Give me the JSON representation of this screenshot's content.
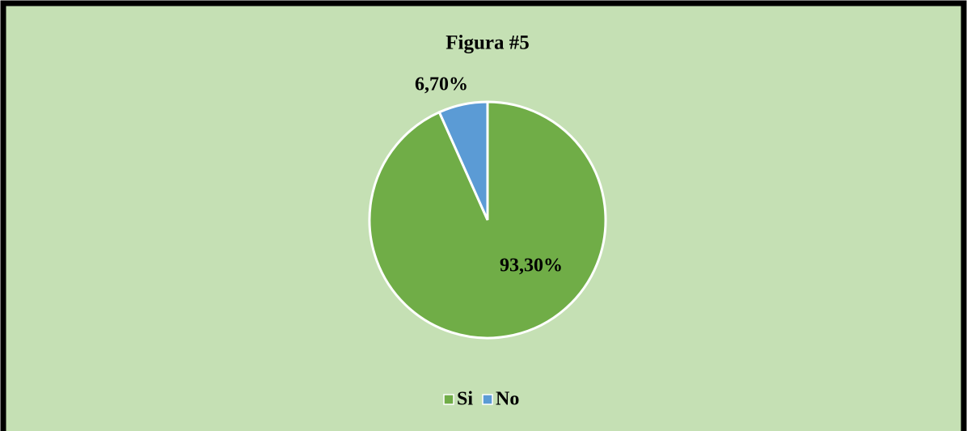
{
  "chart_data": {
    "type": "pie",
    "title": "Figura #5",
    "categories": [
      "Si",
      "No"
    ],
    "values": [
      93.3,
      6.7
    ],
    "value_labels": [
      "93,30%",
      "6,70%"
    ],
    "colors": [
      "#70ad47",
      "#5b9bd5"
    ],
    "legend": "bottom"
  }
}
